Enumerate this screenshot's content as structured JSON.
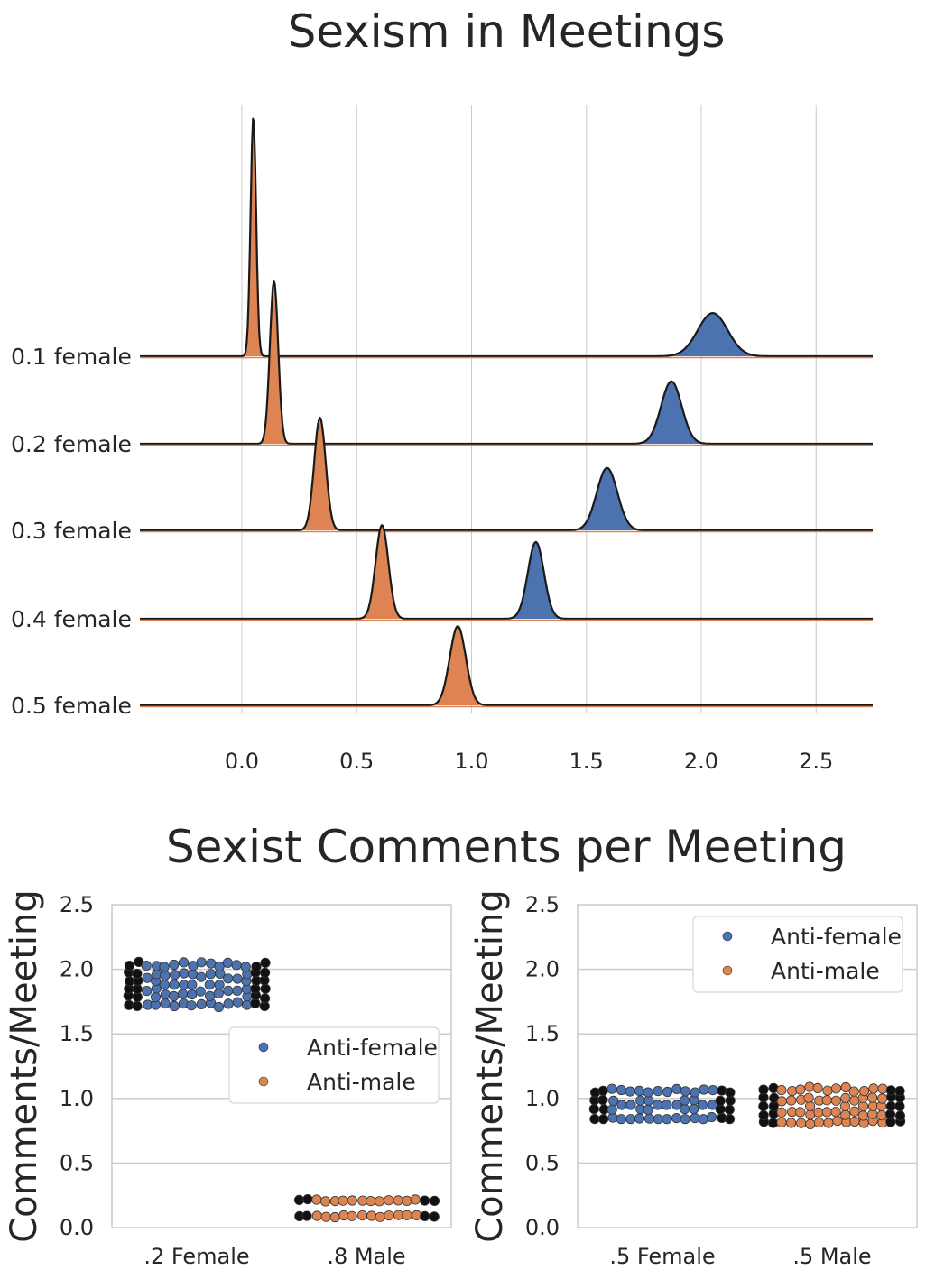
{
  "figure_titles": {
    "top": "Sexism in Meetings",
    "bottom": "Sexist Comments per Meeting"
  },
  "colors": {
    "anti_female": "#4c72b0",
    "anti_male": "#dd8452",
    "outline": "#1a1a1a",
    "grid": "#cccccc"
  },
  "chart_data": [
    {
      "type": "ridgeline",
      "title": "Sexism in Meetings",
      "xlim": [
        -0.45,
        2.75
      ],
      "xticks": [
        "0.0",
        "0.5",
        "1.0",
        "1.5",
        "2.0",
        "2.5"
      ],
      "grid": true,
      "rows": [
        {
          "label": "0.1 female",
          "anti_male": {
            "mean": 0.05,
            "sd": 0.012,
            "height": 1.0
          },
          "anti_female": {
            "mean": 2.05,
            "sd": 0.065,
            "height": 0.18
          }
        },
        {
          "label": "0.2 female",
          "anti_male": {
            "mean": 0.14,
            "sd": 0.018,
            "height": 0.68
          },
          "anti_female": {
            "mean": 1.87,
            "sd": 0.045,
            "height": 0.26
          }
        },
        {
          "label": "0.3 female",
          "anti_male": {
            "mean": 0.34,
            "sd": 0.025,
            "height": 0.47
          },
          "anti_female": {
            "mean": 1.59,
            "sd": 0.045,
            "height": 0.26
          }
        },
        {
          "label": "0.4 female",
          "anti_male": {
            "mean": 0.61,
            "sd": 0.028,
            "height": 0.39
          },
          "anti_female": {
            "mean": 1.28,
            "sd": 0.035,
            "height": 0.32
          }
        },
        {
          "label": "0.5 female",
          "anti_male": {
            "mean": 0.94,
            "sd": 0.035,
            "height": 0.33
          },
          "anti_female": null
        }
      ]
    },
    {
      "type": "swarm",
      "ylabel": "Comments/Meeting",
      "ylim": [
        0.0,
        2.5
      ],
      "yticks": [
        "0.0",
        "0.5",
        "1.0",
        "1.5",
        "2.0",
        "2.5"
      ],
      "categories": [
        ".2 Female",
        ".8 Male"
      ],
      "series": [
        {
          "name": "Anti-female",
          "category": ".2 Female",
          "center": 1.88,
          "spread": 0.1,
          "min": 1.7,
          "max": 2.06
        },
        {
          "name": "Anti-male",
          "category": ".8 Male",
          "center": 0.15,
          "spread": 0.04,
          "min": 0.08,
          "max": 0.22
        }
      ],
      "legend": {
        "position": "center-right",
        "entries": [
          "Anti-female",
          "Anti-male"
        ]
      }
    },
    {
      "type": "swarm",
      "ylabel": "Comments/Meeting",
      "ylim": [
        0.0,
        2.5
      ],
      "yticks": [
        "0.0",
        "0.5",
        "1.0",
        "1.5",
        "2.0",
        "2.5"
      ],
      "categories": [
        ".5 Female",
        ".5 Male"
      ],
      "series": [
        {
          "name": "Anti-female",
          "category": ".5 Female",
          "center": 0.95,
          "spread": 0.05,
          "min": 0.84,
          "max": 1.09
        },
        {
          "name": "Anti-male",
          "category": ".5 Male",
          "center": 0.94,
          "spread": 0.05,
          "min": 0.8,
          "max": 1.1
        }
      ],
      "legend": {
        "position": "top-right",
        "entries": [
          "Anti-female",
          "Anti-male"
        ]
      }
    }
  ]
}
